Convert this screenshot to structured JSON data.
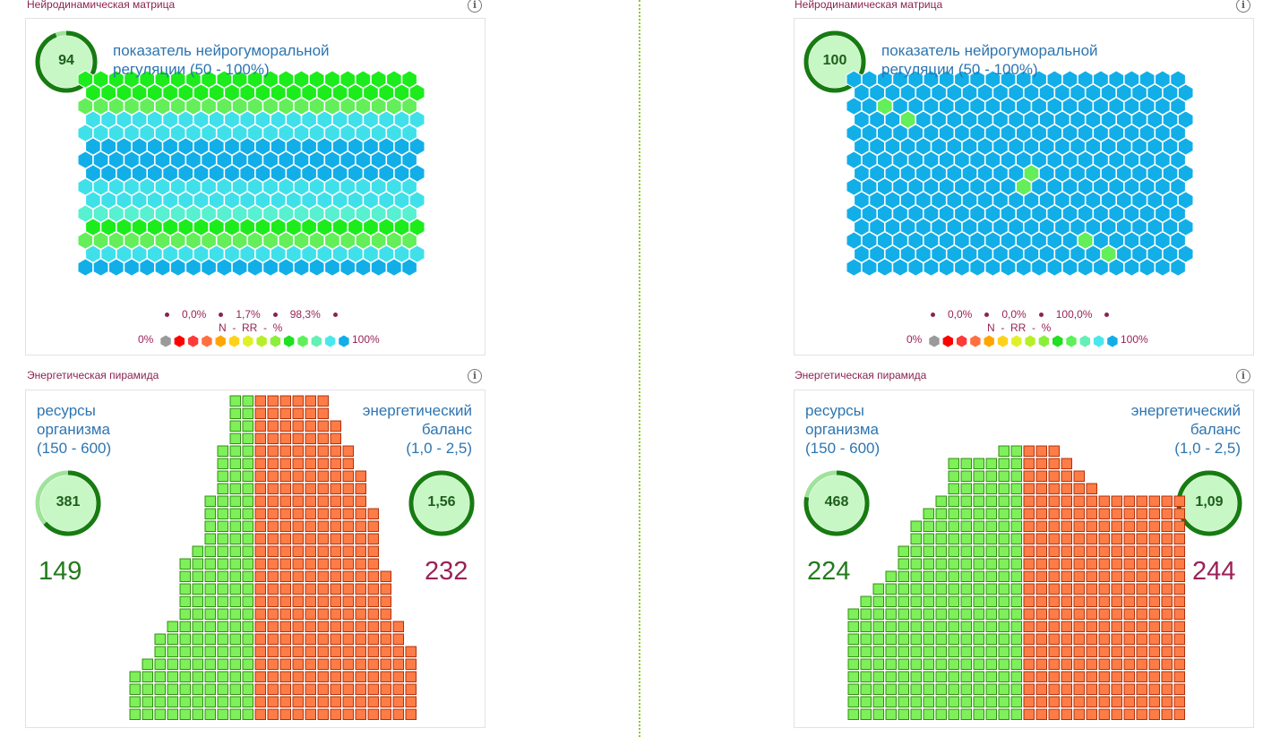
{
  "colors": {
    "hex_blue": "#12aee8",
    "hex_cyan": "#3fe0ea",
    "hex_aqua": "#57f0d0",
    "hex_green": "#1cec1c",
    "hex_lightgreen": "#63ee5a",
    "pyr_green": "#7ef05a",
    "pyr_green_border": "#2f8f0f",
    "pyr_orange": "#ff7c46",
    "pyr_orange_border": "#b2300a",
    "ring_dark": "#177b12",
    "ring_light": "#9ee39a",
    "ring_fill": "#c7f7c4"
  },
  "legend": {
    "min_label": "0%",
    "max_label": "100%",
    "colors": [
      "#9a9a9a",
      "#ff0000",
      "#ff3a3a",
      "#ff7040",
      "#ffa500",
      "#ffd21a",
      "#e1ef2a",
      "#b6ef2a",
      "#8aef3a",
      "#20e020",
      "#5ef058",
      "#62f0b4",
      "#4ae8ea",
      "#12aee8"
    ]
  },
  "panels": [
    {
      "matrix": {
        "title": "Нейродинамическая матрица",
        "info": "i",
        "score": "94",
        "score_fraction": 0.94,
        "label_line1": "показатель нейрогуморальной",
        "label_line2": "регуляции (50 - 100%)",
        "stats": [
          "0,0%",
          "1,7%",
          "98,3%"
        ],
        "nrr": "N  -  RR  -  %",
        "grid_rows": [
          "GGGGGGGGGGGGGGGGGGGGGG",
          "GGGGGGGGGGGGGGGGGGGGGG",
          "LLLLLLLLLLLLLLLLLLLLLL",
          "CCCCCCCCCCCCCCCCCCCCCC",
          "CCCCCCCCCCCCCCCCCCCCCC",
          "BBBBBBBBBBBBBBBBBBBBBB",
          "BBBBBBBBBBBBBBBBBBBBBB",
          "BBBBBBBBBBBBBBBBBBBBBB",
          "CCCCCCCCCCCCCCCCCCCCCC",
          "CCCCCCCCCCCCCCCCCCCCCC",
          "AAAAAAAAAAAAAAAAAAAAAA",
          "GGGGGGGGGGGGGGGGGGGGGG",
          "LLLLLLLLLLLLLLLLLLLLLL",
          "CCCCCCCCCCCCCCCCCCCCCC",
          "BBBBBBBBBBBBBBBBBBBBBB"
        ]
      },
      "pyramid": {
        "title": "Энергетическая пирамида",
        "info": "i",
        "left_label1": "ресурсы",
        "left_label2": "организма",
        "left_label3": "(150 - 600)",
        "right_label1": "энергетический",
        "right_label2": "баланс",
        "right_label3": "(1,0 - 2,5)",
        "score": "381",
        "score_fraction": 0.635,
        "balance": "1,56",
        "balance_fraction": 1.0,
        "left_value": "149",
        "right_value": "232",
        "green_columns": [
          4,
          5,
          7,
          8,
          13,
          14,
          18,
          22,
          26,
          26
        ],
        "orange_columns": [
          26,
          26,
          26,
          26,
          26,
          26,
          24,
          22,
          20,
          17,
          12,
          8,
          6
        ]
      }
    },
    {
      "matrix": {
        "title": "Нейродинамическая матрица",
        "info": "i",
        "score": "100",
        "score_fraction": 1.0,
        "label_line1": "показатель нейрогуморальной",
        "label_line2": "регуляции (50 - 100%)",
        "stats": [
          "0,0%",
          "0,0%",
          "100,0%"
        ],
        "nrr": "N  -  RR  -  %",
        "grid_rows": [
          "BBBBBBBBBBBBBBBBBBBBBB",
          "BBBBBBBBBBBBBBBBBBBBBB",
          "BBBBBBBBBBBBBBBBBBBBBB",
          "BBBBBBBBBBBBBBBBBBBBBB",
          "BBBBBBBBBBBBBBBBBBBBBB",
          "BBBBBBBBBBBBBBBBBBBBBB",
          "BBBBBBBBBBBBBBBBBBBBBB",
          "BBBBBBBBBBBBBBBBBBBBBB",
          "BBBBBBBBBBBBBBBBBBBBBB",
          "BBBBBBBBBBBBBBBBBBBBBB",
          "BBBBBBBBBBBBBBBBBBBBBB",
          "BBBBBBBBBBBBBBBBBBBBBB",
          "BBBBBBBBBBBBBBBBBBBBBB",
          "BBBBBBBBBBBBBBBBBBBBBB",
          "BBBBBBBBBBBBBBBBBBBBBB"
        ],
        "highlights": [
          [
            2,
            2
          ],
          [
            3,
            3
          ],
          [
            7,
            11
          ],
          [
            8,
            11
          ],
          [
            12,
            15
          ],
          [
            13,
            16
          ]
        ]
      },
      "pyramid": {
        "title": "Энергетическая пирамида",
        "info": "i",
        "left_label1": "ресурсы",
        "left_label2": "организма",
        "left_label3": "(150 - 600)",
        "right_label1": "энергетический",
        "right_label2": "баланс",
        "right_label3": "(1,0 - 2,5)",
        "score": "468",
        "score_fraction": 0.78,
        "balance": "1,09",
        "balance_fraction": 1.0,
        "left_value": "224",
        "right_value": "244",
        "green_columns": [
          9,
          10,
          11,
          12,
          14,
          16,
          17,
          18,
          21,
          21,
          21,
          21,
          22,
          22
        ],
        "orange_columns": [
          22,
          22,
          22,
          21,
          20,
          19,
          18,
          18,
          18,
          18,
          18,
          18,
          18
        ]
      }
    }
  ]
}
